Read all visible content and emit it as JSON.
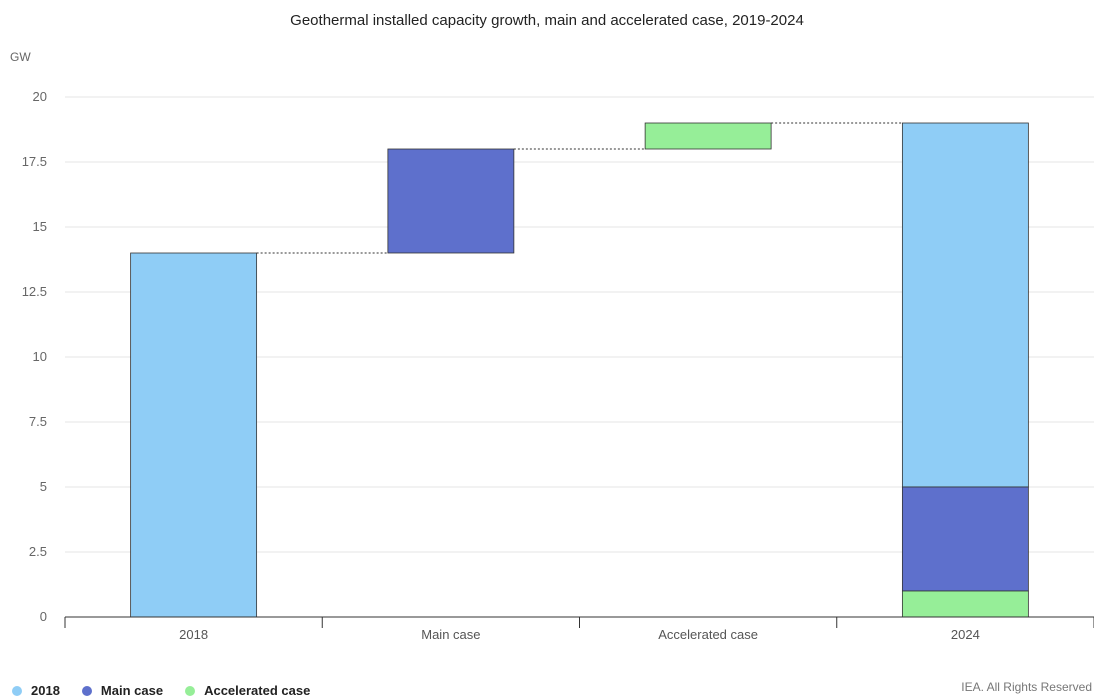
{
  "title": "Geothermal installed capacity growth, main and accelerated case, 2019-2024",
  "unit_label": "GW",
  "credit": "IEA. All Rights Reserved",
  "colors": {
    "2018": "#8fcdf6",
    "main": "#5e70cc",
    "accelerated": "#96ee98",
    "grid": "#e6e6e6",
    "axis": "#333333"
  },
  "legend": [
    {
      "label": "2018",
      "color": "#8fcdf6"
    },
    {
      "label": "Main case",
      "color": "#5e70cc"
    },
    {
      "label": "Accelerated case",
      "color": "#96ee98"
    }
  ],
  "chart_data": {
    "type": "bar",
    "subtype": "waterfall",
    "title": "Geothermal installed capacity growth, main and accelerated case, 2019-2024",
    "ylabel": "GW",
    "ylim": [
      0,
      20
    ],
    "yticks": [
      0,
      2.5,
      5,
      7.5,
      10,
      12.5,
      15,
      17.5,
      20
    ],
    "ytick_labels": [
      "0",
      "2.5",
      "5",
      "7.5",
      "10",
      "12.5",
      "15",
      "17.5",
      "20"
    ],
    "categories": [
      "2018",
      "Main case",
      "Accelerated case",
      "2024"
    ],
    "series": [
      {
        "name": "2018",
        "values": [
          14,
          null,
          null,
          14
        ],
        "base": [
          0,
          null,
          null,
          5
        ]
      },
      {
        "name": "Main case",
        "values": [
          null,
          4,
          null,
          4
        ],
        "base": [
          null,
          14,
          null,
          1
        ]
      },
      {
        "name": "Accelerated case",
        "values": [
          null,
          null,
          1,
          1
        ],
        "base": [
          null,
          null,
          18,
          0
        ]
      }
    ],
    "connectors": [
      {
        "from": 0,
        "to": 1,
        "y": 14
      },
      {
        "from": 1,
        "to": 2,
        "y": 18
      },
      {
        "from": 2,
        "to": 3,
        "y": 19
      }
    ],
    "grid": true,
    "legend_position": "bottom-left"
  }
}
